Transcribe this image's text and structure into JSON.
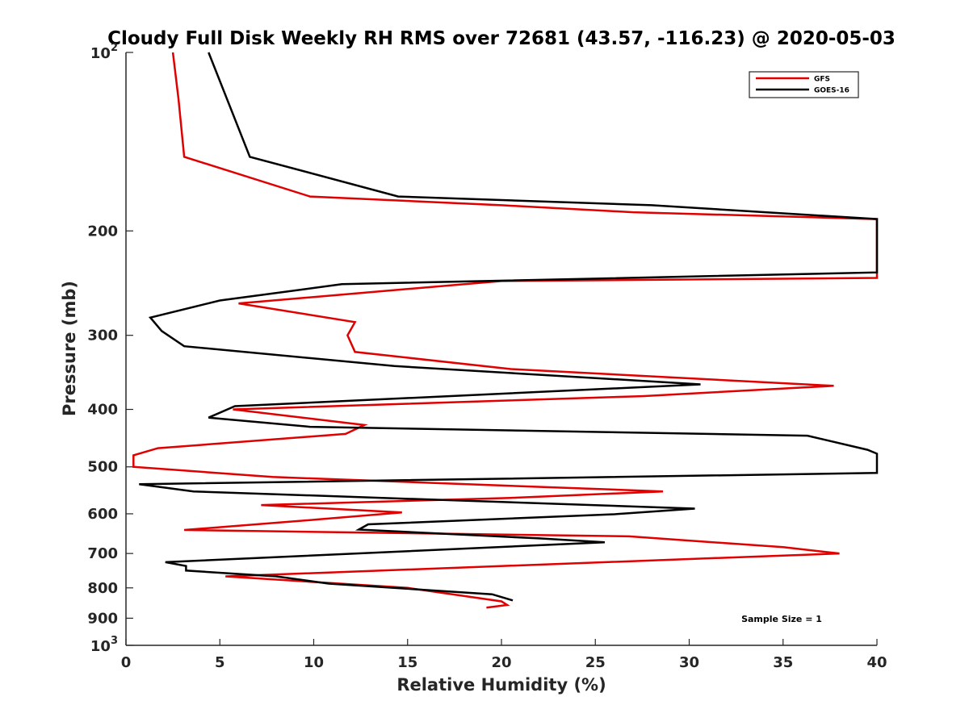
{
  "chart_data": {
    "type": "line",
    "title": "Cloudy Full Disk Weekly RH RMS over 72681 (43.57, -116.23) @ 2020-05-03",
    "xlabel": "Relative Humidity (%)",
    "ylabel": "Pressure (mb)",
    "xlim": [
      0,
      40
    ],
    "ylim": [
      100,
      1000
    ],
    "y_scale": "log",
    "y_reversed": true,
    "x_ticks": [
      {
        "value": 0,
        "label": "0"
      },
      {
        "value": 5,
        "label": "5"
      },
      {
        "value": 10,
        "label": "10"
      },
      {
        "value": 15,
        "label": "15"
      },
      {
        "value": 20,
        "label": "20"
      },
      {
        "value": 25,
        "label": "25"
      },
      {
        "value": 30,
        "label": "30"
      },
      {
        "value": 35,
        "label": "35"
      },
      {
        "value": 40,
        "label": "40"
      }
    ],
    "y_ticks": [
      {
        "value": 100,
        "base": "10",
        "exp": "2"
      },
      {
        "value": 200,
        "label": "200"
      },
      {
        "value": 300,
        "label": "300"
      },
      {
        "value": 400,
        "label": "400"
      },
      {
        "value": 500,
        "label": "500"
      },
      {
        "value": 600,
        "label": "600"
      },
      {
        "value": 700,
        "label": "700"
      },
      {
        "value": 800,
        "label": "800"
      },
      {
        "value": 900,
        "label": "900"
      },
      {
        "value": 1000,
        "base": "10",
        "exp": "3"
      }
    ],
    "grid": false,
    "legend_position": "top-right",
    "annotation": "Sample Size = 1",
    "series": [
      {
        "name": "GFS",
        "color": "#e00000",
        "points": [
          [
            2.5,
            100
          ],
          [
            2.8,
            120
          ],
          [
            3.1,
            150
          ],
          [
            9.8,
            175
          ],
          [
            20,
            181
          ],
          [
            27,
            186
          ],
          [
            40,
            191
          ],
          [
            40,
            240
          ],
          [
            20,
            243
          ],
          [
            6,
            265
          ],
          [
            12.2,
            285
          ],
          [
            11.8,
            300
          ],
          [
            12.2,
            320
          ],
          [
            20.5,
            342
          ],
          [
            37.7,
            365
          ],
          [
            27.5,
            380
          ],
          [
            5.7,
            400
          ],
          [
            12.7,
            425
          ],
          [
            11.7,
            440
          ],
          [
            1.7,
            465
          ],
          [
            0.4,
            478
          ],
          [
            0.4,
            500
          ],
          [
            7.8,
            520
          ],
          [
            28.6,
            550
          ],
          [
            20.5,
            564
          ],
          [
            7.2,
            580
          ],
          [
            14.7,
            597
          ],
          [
            10.3,
            613
          ],
          [
            3.1,
            639
          ],
          [
            26.8,
            655
          ],
          [
            35,
            683
          ],
          [
            38,
            700
          ],
          [
            5.3,
            765
          ],
          [
            15,
            800
          ],
          [
            20,
            843
          ],
          [
            20.3,
            855
          ],
          [
            19.2,
            864
          ]
        ]
      },
      {
        "name": "GOES-16",
        "color": "#000000",
        "points": [
          [
            4.4,
            100
          ],
          [
            6.6,
            150
          ],
          [
            14.5,
            175
          ],
          [
            28,
            181
          ],
          [
            40,
            191
          ],
          [
            40,
            235
          ],
          [
            11.5,
            246
          ],
          [
            5,
            262
          ],
          [
            1.3,
            280
          ],
          [
            1.9,
            295
          ],
          [
            3.1,
            313
          ],
          [
            14.3,
            338
          ],
          [
            30.6,
            363
          ],
          [
            5.8,
            395
          ],
          [
            4.4,
            413
          ],
          [
            9.8,
            428
          ],
          [
            36.3,
            443
          ],
          [
            39.5,
            468
          ],
          [
            40,
            475
          ],
          [
            40,
            512
          ],
          [
            0.7,
            535
          ],
          [
            3.6,
            550
          ],
          [
            30.3,
            588
          ],
          [
            26,
            601
          ],
          [
            12.9,
            625
          ],
          [
            12.4,
            638
          ],
          [
            22,
            660
          ],
          [
            25.5,
            670
          ],
          [
            2.1,
            724
          ],
          [
            3.2,
            735
          ],
          [
            3.2,
            748
          ],
          [
            8,
            765
          ],
          [
            10.8,
            787
          ],
          [
            19.5,
            820
          ],
          [
            20.6,
            840
          ]
        ]
      }
    ]
  }
}
